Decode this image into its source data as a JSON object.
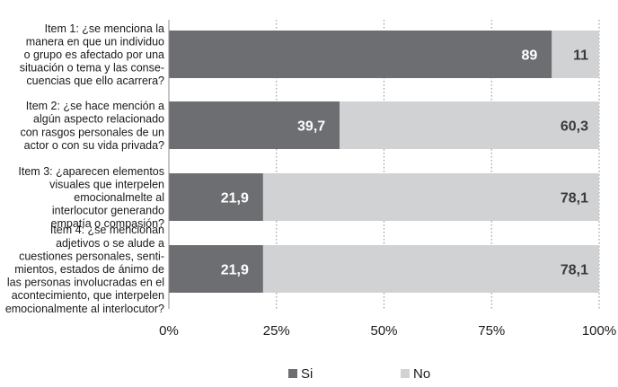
{
  "chart_data": {
    "type": "bar",
    "orientation": "horizontal",
    "stacked": "percent",
    "categories": [
      [
        "Item 1:  ¿se menciona la",
        "manera en que un individuo",
        "o grupo es afectado por una",
        "situación o tema y las conse-",
        "cuencias que ello acarrera?"
      ],
      [
        "Item 2: ¿se hace mención a",
        "algún aspecto relacionado",
        "con rasgos personales de un",
        "actor o con su vida privada?"
      ],
      [
        "Item 3: ¿aparecen elementos",
        "visuales que interpelen",
        "emocionalmelte al",
        "interlocutor generando",
        "empatía o compasión?"
      ],
      [
        "Item 4: ¿se mencionan",
        "adjetivos o se alude a",
        "cuestiones personales, senti-",
        "mientos, estados de ánimo de",
        "las personas involucradas en el",
        "acontecimiento, que interpelen",
        "emocionalmente al interlocutor?"
      ]
    ],
    "series": [
      {
        "name": "Si",
        "color": "#6d6e71",
        "label_color": "#ffffff",
        "values": [
          89,
          39.7,
          21.9,
          21.9
        ],
        "labels": [
          "89",
          "39,7",
          "21,9",
          "21,9"
        ]
      },
      {
        "name": "No",
        "color": "#d1d2d3",
        "label_color": "#3a3a3a",
        "values": [
          11,
          60.3,
          78.1,
          78.1
        ],
        "labels": [
          "11",
          "60,3",
          "78,1",
          "78,1"
        ]
      }
    ],
    "xlim": [
      0,
      100
    ],
    "xticks": [
      0,
      25,
      50,
      75,
      100
    ],
    "xtick_labels": [
      "0%",
      "25%",
      "50%",
      "75%",
      "100%"
    ],
    "grid": "vertical-dotted",
    "legend_position": "bottom"
  }
}
